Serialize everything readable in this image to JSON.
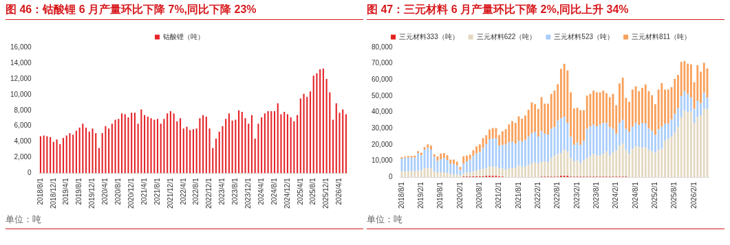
{
  "chart_data": [
    {
      "type": "bar",
      "title": "图 46：钴酸锂 6 月产量环比下降 7%,同比下降 23%",
      "annotations": [
        "单位：吨"
      ],
      "categories": [
        "2018/8/1",
        null,
        null,
        null,
        "2018/12/1",
        null,
        null,
        null,
        "2019/4/1",
        null,
        null,
        null,
        "2019/8/1",
        null,
        null,
        null,
        "2019/12/1",
        null,
        null,
        null,
        "2020/4/1",
        null,
        null,
        null,
        "2020/8/1",
        null,
        null,
        null,
        "2020/12/1",
        null,
        null,
        null,
        "2021/4/1",
        null,
        null,
        null,
        "2021/8/1",
        null,
        null,
        null,
        "2021/12/1",
        null,
        null,
        null,
        "2022/4/1",
        null,
        null,
        null,
        "2022/8/1",
        null,
        null,
        null,
        "2022/12/1",
        null,
        null,
        null,
        "2023/4/1",
        null,
        null,
        null,
        "2023/8/1",
        null,
        null,
        null,
        "2023/12/1",
        null,
        null,
        null,
        "2024/4/1",
        null,
        null,
        null,
        "2024/8/1",
        null,
        null,
        null,
        "2024/12/1",
        null,
        null,
        null,
        "2025/4/1",
        null,
        null,
        null,
        "2025/8/1",
        null,
        null,
        null,
        "2025/12/1",
        null,
        null,
        null,
        "2026/4/1",
        null,
        null
      ],
      "series": [
        {
          "name": "钴酸锂（吨）",
          "color": "#e5252a",
          "values": [
            4700,
            4800,
            4700,
            4600,
            4000,
            4300,
            3700,
            4500,
            4800,
            5100,
            4900,
            5400,
            5800,
            6300,
            5800,
            5300,
            5700,
            5100,
            3200,
            5100,
            6000,
            5700,
            6300,
            6800,
            6900,
            7600,
            7500,
            7100,
            7700,
            7700,
            6300,
            8100,
            7400,
            7200,
            7000,
            6800,
            6900,
            6300,
            6900,
            7600,
            7900,
            7600,
            6600,
            7000,
            5700,
            5900,
            5500,
            5600,
            5700,
            7000,
            7400,
            7200,
            5700,
            3200,
            4400,
            5300,
            6000,
            6900,
            7600,
            6700,
            6800,
            8000,
            7800,
            7000,
            6300,
            7400,
            4400,
            6300,
            7100,
            7600,
            7900,
            7900,
            7900,
            8900,
            7500,
            7800,
            7500,
            7100,
            6600,
            7400,
            9500,
            10100,
            9700,
            10400,
            12400,
            12700,
            13200,
            13300,
            12000,
            10300,
            6800,
            8900,
            7700,
            8100,
            7500
          ]
        }
      ],
      "ylim": [
        0,
        16000
      ],
      "yticks": [
        {
          "value": 0,
          "label": "0"
        },
        {
          "value": 2000,
          "label": "2,000"
        },
        {
          "value": 4000,
          "label": "4,000"
        },
        {
          "value": 6000,
          "label": "6,000"
        },
        {
          "value": 8000,
          "label": "8,000"
        },
        {
          "value": 10000,
          "label": "10,000"
        },
        {
          "value": 12000,
          "label": "12,000"
        },
        {
          "value": 14000,
          "label": "14,000"
        },
        {
          "value": 16000,
          "label": "16,000"
        }
      ],
      "legend": "top"
    },
    {
      "type": "bar",
      "title": "图 47：三元材料 6 月产量环比下降 2%,同比上升 34%",
      "annotations": [
        "单位：吨"
      ],
      "categories": [
        "2018/8/1",
        null,
        null,
        null,
        null,
        null,
        "2019/2/1",
        null,
        null,
        null,
        null,
        null,
        "2019/8/1",
        null,
        null,
        null,
        null,
        null,
        "2020/2/1",
        null,
        null,
        null,
        null,
        null,
        "2020/8/1",
        null,
        null,
        null,
        null,
        null,
        "2021/2/1",
        null,
        null,
        null,
        null,
        null,
        "2021/8/1",
        null,
        null,
        null,
        null,
        null,
        "2022/2/1",
        null,
        null,
        null,
        null,
        null,
        "2022/8/1",
        null,
        null,
        null,
        null,
        null,
        "2023/2/1",
        null,
        null,
        null,
        null,
        null,
        "2023/8/1",
        null,
        null,
        null,
        null,
        null,
        "2024/2/1",
        null,
        null,
        null,
        null,
        null,
        "2024/8/1",
        null,
        null,
        null,
        null,
        null,
        "2025/2/1",
        null,
        null,
        null,
        null,
        null,
        "2025/8/1",
        null,
        null,
        null,
        null,
        null,
        "2026/2/1",
        null,
        null,
        null,
        null
      ],
      "stacked": true,
      "series": [
        {
          "name": "三元材料333（吨）",
          "color": "#e3211c",
          "values": [
            0,
            0,
            0,
            0,
            0,
            0,
            0,
            0,
            0,
            0,
            0,
            0,
            0,
            0,
            0,
            0,
            0,
            0,
            0,
            300,
            300,
            300,
            500,
            500,
            500,
            500,
            800,
            800,
            800,
            800,
            500,
            300,
            0,
            0,
            0,
            0,
            0,
            0,
            0,
            0,
            0,
            0,
            0,
            300,
            300,
            300,
            300,
            300,
            300,
            800,
            800,
            800,
            300,
            300,
            300,
            300,
            300,
            300,
            300,
            300,
            300,
            300,
            300,
            300,
            300,
            300,
            300,
            300,
            300,
            300,
            0,
            0,
            0,
            0,
            0,
            0,
            0,
            0,
            0,
            0,
            0,
            0,
            0,
            0,
            0,
            0,
            0,
            0,
            0,
            0,
            0,
            0,
            0,
            0,
            0
          ]
        },
        {
          "name": "三元材料622（吨）",
          "color": "#e3d8c0",
          "values": [
            3500,
            3500,
            3700,
            3700,
            3500,
            4000,
            4000,
            5500,
            5500,
            5500,
            3500,
            3000,
            3000,
            3000,
            2500,
            2000,
            1500,
            1500,
            1000,
            2000,
            2500,
            2500,
            3000,
            3500,
            4000,
            4500,
            4500,
            6000,
            5500,
            5500,
            5000,
            5000,
            4500,
            5500,
            5500,
            6000,
            7000,
            6500,
            6500,
            7500,
            8500,
            9000,
            8500,
            9000,
            9500,
            9000,
            11500,
            13000,
            14000,
            14000,
            16000,
            15000,
            11500,
            9500,
            10000,
            8500,
            10000,
            11500,
            12500,
            14000,
            13000,
            13000,
            14000,
            15500,
            13000,
            15000,
            16000,
            19000,
            20500,
            16500,
            14500,
            17500,
            19000,
            18500,
            18000,
            18500,
            17000,
            16000,
            15000,
            17000,
            17500,
            22500,
            23500,
            25000,
            27500,
            31000,
            37000,
            41000,
            40000,
            40500,
            33500,
            37000,
            38000,
            42000,
            42000
          ]
        },
        {
          "name": "三元材料523（吨）",
          "color": "#a9cdfb",
          "values": [
            8000,
            8500,
            8300,
            8300,
            8500,
            10800,
            9500,
            11500,
            12500,
            11500,
            9000,
            7000,
            8000,
            8800,
            8000,
            6500,
            6500,
            5500,
            3500,
            6000,
            7000,
            8000,
            9500,
            10500,
            11000,
            13000,
            15000,
            16500,
            17500,
            17500,
            14000,
            14500,
            15500,
            16000,
            16500,
            14500,
            15500,
            15500,
            16500,
            17500,
            18500,
            19000,
            16500,
            19000,
            17000,
            17000,
            18000,
            17500,
            20500,
            21500,
            20500,
            17500,
            13000,
            10000,
            11000,
            11000,
            12000,
            18000,
            18500,
            18000,
            18000,
            19000,
            19000,
            17500,
            17500,
            14500,
            10500,
            14000,
            14500,
            13000,
            13500,
            13500,
            14500,
            13500,
            15500,
            14500,
            13000,
            12500,
            11000,
            12500,
            13500,
            10500,
            9500,
            10500,
            11500,
            11500,
            13000,
            12000,
            11000,
            8500,
            8500,
            10000,
            7500,
            10000,
            7000
          ]
        },
        {
          "name": "三元材料811（吨）",
          "color": "#f9a05a",
          "values": [
            800,
            700,
            1000,
            1000,
            1300,
            1200,
            1500,
            1500,
            2200,
            2500,
            1500,
            2800,
            3500,
            3000,
            3000,
            2300,
            2800,
            2500,
            1800,
            4500,
            3500,
            3000,
            3500,
            4500,
            4700,
            6000,
            5500,
            6000,
            6500,
            6500,
            6500,
            8500,
            9500,
            11000,
            12500,
            13000,
            15000,
            14000,
            15000,
            16500,
            19000,
            17000,
            17000,
            21000,
            18500,
            19000,
            21500,
            22500,
            22500,
            30500,
            32500,
            32500,
            27500,
            22500,
            21500,
            21500,
            19000,
            20500,
            20000,
            21000,
            21000,
            20000,
            20000,
            18500,
            18500,
            21500,
            17500,
            24500,
            26000,
            19000,
            18500,
            23000,
            22500,
            21000,
            21500,
            24000,
            23000,
            22000,
            19000,
            24500,
            27000,
            21000,
            21000,
            20000,
            21500,
            20500,
            21000,
            18500,
            19000,
            20500,
            16500,
            22000,
            19500,
            18500,
            18000
          ]
        }
      ],
      "ylim": [
        0,
        80000
      ],
      "yticks": [
        {
          "value": 0,
          "label": "0"
        },
        {
          "value": 10000,
          "label": "10,000"
        },
        {
          "value": 20000,
          "label": "20,000"
        },
        {
          "value": 30000,
          "label": "30,000"
        },
        {
          "value": 40000,
          "label": "40,000"
        },
        {
          "value": 50000,
          "label": "50,000"
        },
        {
          "value": 60000,
          "label": "60,000"
        },
        {
          "value": 70000,
          "label": "70,000"
        },
        {
          "value": 80000,
          "label": "80,000"
        }
      ],
      "legend": "top"
    }
  ]
}
